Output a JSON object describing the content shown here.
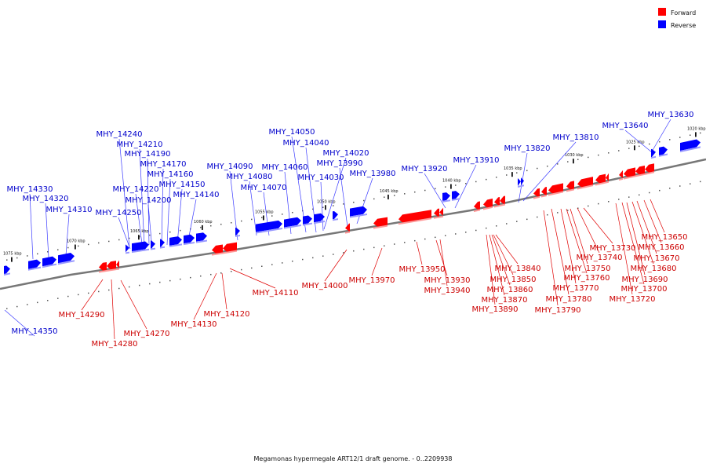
{
  "caption": "Megamonas hypermegale ART12/1 draft genome. - 0..2209938",
  "legend": [
    {
      "label": "Forward",
      "color": "#ff0000"
    },
    {
      "label": "Reverse",
      "color": "#0000ff"
    }
  ],
  "colors": {
    "forward": "#ff0000",
    "reverse": "#0000ff",
    "backbone": "#777777"
  },
  "kbp_ticks": [
    "1075 kbp",
    "1070 kbp",
    "1065 kbp",
    "1060 kbp",
    "1055 kbp",
    "1050 kbp",
    "1045 kbp",
    "1040 kbp",
    "1035 kbp",
    "1030 kbp",
    "1025 kbp",
    "1020 kbp"
  ],
  "forward_labels": [
    "MHY_14290",
    "MHY_14280",
    "MHY_14270",
    "MHY_14130",
    "MHY_14120",
    "MHY_14110",
    "MHY_14000",
    "MHY_13970",
    "MHY_13950",
    "MHY_13930",
    "MHY_13940",
    "MHY_13840",
    "MHY_13850",
    "MHY_13860",
    "MHY_13870",
    "MHY_13890",
    "MHY_13730",
    "MHY_13740",
    "MHY_13750",
    "MHY_13760",
    "MHY_13770",
    "MHY_13780",
    "MHY_13790",
    "MHY_13650",
    "MHY_13660",
    "MHY_13670",
    "MHY_13680",
    "MHY_13690",
    "MHY_13700",
    "MHY_13720"
  ],
  "reverse_labels": [
    "MHY_14330",
    "MHY_14320",
    "MHY_14310",
    "MHY_14350",
    "MHY_14240",
    "MHY_14210",
    "MHY_14190",
    "MHY_14170",
    "MHY_14160",
    "MHY_14150",
    "MHY_14140",
    "MHY_14220",
    "MHY_14200",
    "MHY_14250",
    "MHY_14090",
    "MHY_14080",
    "MHY_14070",
    "MHY_14060",
    "MHY_14050",
    "MHY_14040",
    "MHY_14020",
    "MHY_14030",
    "MHY_13990",
    "MHY_13980",
    "MHY_13920",
    "MHY_13910",
    "MHY_13820",
    "MHY_13810",
    "MHY_13640",
    "MHY_13630"
  ]
}
